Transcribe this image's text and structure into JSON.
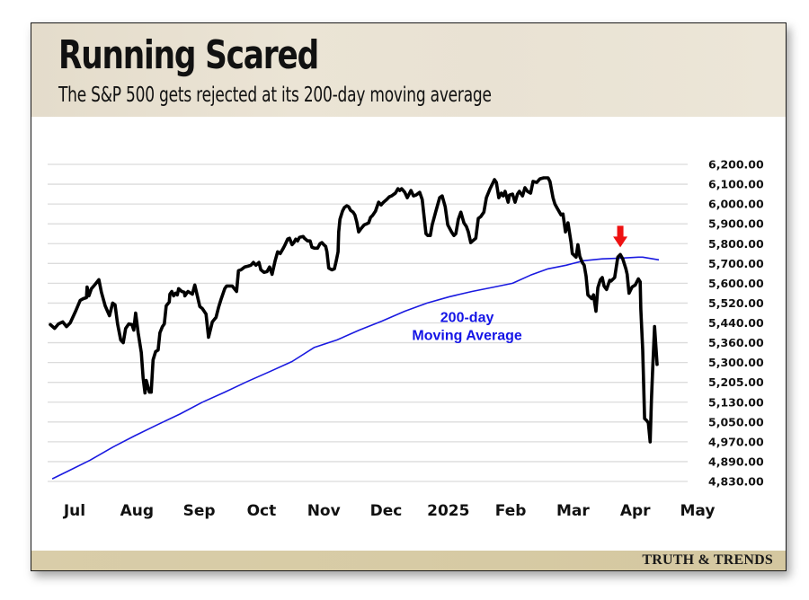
{
  "header": {
    "title": "Running Scared",
    "subtitle": "The S&P 500 gets rejected at its 200-day moving average"
  },
  "footer": {
    "brand": "TRUTH & TRENDS"
  },
  "colors": {
    "price_line": "#000000",
    "moving_average": "#1a1ae0",
    "annotation": "#1414e6",
    "arrow": "#ee1111",
    "grid": "#dcdcdc"
  },
  "chart_data": {
    "type": "line",
    "title": "Running Scared",
    "subtitle": "The S&P 500 gets rejected at its 200-day moving average",
    "xlabel": "",
    "ylabel": "",
    "x_units": "months since July 2024 (Jul = 0)",
    "x_tick_labels": [
      "Jul",
      "Aug",
      "Sep",
      "Oct",
      "Nov",
      "Dec",
      "2025",
      "Feb",
      "Mar",
      "Apr",
      "May"
    ],
    "x_tick_values": [
      0,
      1,
      2,
      3,
      4,
      5,
      6,
      7,
      8,
      9,
      10
    ],
    "y_tick_labels": [
      "6,200.00",
      "6,100.00",
      "6,000.00",
      "5,900.00",
      "5,800.00",
      "5,700.00",
      "5,600.00",
      "5,520.00",
      "5,440.00",
      "5,360.00",
      "5,300.00",
      "5,205.00",
      "5,130.00",
      "5,050.00",
      "4,970.00",
      "4,890.00",
      "4,830.00"
    ],
    "y_tick_values": [
      6200,
      6100,
      6000,
      5900,
      5800,
      5700,
      5600,
      5520,
      5440,
      5360,
      5300,
      5205,
      5130,
      5050,
      4970,
      4890,
      4830
    ],
    "grid": true,
    "y_axis_side": "right",
    "annotations": [
      {
        "text_line1": "200-day",
        "text_line2": "Moving Average",
        "x": 6.3,
        "y": 5400
      },
      {
        "type": "arrow",
        "color": "red",
        "x": 8.76,
        "y": 5745
      }
    ],
    "series": [
      {
        "name": "S&P 500",
        "points": [
          [
            -0.39,
            5433
          ],
          [
            -0.32,
            5418
          ],
          [
            -0.26,
            5436
          ],
          [
            -0.19,
            5444
          ],
          [
            -0.13,
            5425
          ],
          [
            -0.07,
            5440
          ],
          [
            0.01,
            5484
          ],
          [
            0.09,
            5531
          ],
          [
            0.14,
            5538
          ],
          [
            0.19,
            5542
          ],
          [
            0.2,
            5585
          ],
          [
            0.23,
            5549
          ],
          [
            0.27,
            5578
          ],
          [
            0.33,
            5596
          ],
          [
            0.39,
            5618
          ],
          [
            0.43,
            5564
          ],
          [
            0.49,
            5509
          ],
          [
            0.56,
            5469
          ],
          [
            0.61,
            5520
          ],
          [
            0.65,
            5513
          ],
          [
            0.69,
            5436
          ],
          [
            0.74,
            5371
          ],
          [
            0.78,
            5360
          ],
          [
            0.82,
            5418
          ],
          [
            0.87,
            5436
          ],
          [
            0.92,
            5433
          ],
          [
            0.95,
            5411
          ],
          [
            0.98,
            5480
          ],
          [
            1.02,
            5400
          ],
          [
            1.07,
            5330
          ],
          [
            1.1,
            5227
          ],
          [
            1.13,
            5165
          ],
          [
            1.15,
            5214
          ],
          [
            1.2,
            5168
          ],
          [
            1.23,
            5168
          ],
          [
            1.26,
            5308
          ],
          [
            1.3,
            5333
          ],
          [
            1.34,
            5338
          ],
          [
            1.37,
            5400
          ],
          [
            1.41,
            5425
          ],
          [
            1.44,
            5436
          ],
          [
            1.47,
            5509
          ],
          [
            1.52,
            5524
          ],
          [
            1.53,
            5556
          ],
          [
            1.56,
            5567
          ],
          [
            1.59,
            5549
          ],
          [
            1.62,
            5560
          ],
          [
            1.65,
            5553
          ],
          [
            1.67,
            5578
          ],
          [
            1.72,
            5567
          ],
          [
            1.76,
            5564
          ],
          [
            1.77,
            5549
          ],
          [
            1.82,
            5567
          ],
          [
            1.89,
            5556
          ],
          [
            1.93,
            5593
          ],
          [
            2.01,
            5506
          ],
          [
            2.05,
            5498
          ],
          [
            2.11,
            5476
          ],
          [
            2.15,
            5382
          ],
          [
            2.21,
            5444
          ],
          [
            2.27,
            5462
          ],
          [
            2.31,
            5502
          ],
          [
            2.35,
            5535
          ],
          [
            2.41,
            5578
          ],
          [
            2.44,
            5589
          ],
          [
            2.53,
            5589
          ],
          [
            2.6,
            5567
          ],
          [
            2.63,
            5664
          ],
          [
            2.67,
            5668
          ],
          [
            2.73,
            5682
          ],
          [
            2.78,
            5686
          ],
          [
            2.83,
            5691
          ],
          [
            2.87,
            5705
          ],
          [
            2.91,
            5691
          ],
          [
            2.96,
            5705
          ],
          [
            2.99,
            5668
          ],
          [
            3.04,
            5655
          ],
          [
            3.09,
            5659
          ],
          [
            3.13,
            5682
          ],
          [
            3.17,
            5645
          ],
          [
            3.22,
            5714
          ],
          [
            3.26,
            5759
          ],
          [
            3.3,
            5750
          ],
          [
            3.35,
            5777
          ],
          [
            3.38,
            5795
          ],
          [
            3.42,
            5823
          ],
          [
            3.45,
            5827
          ],
          [
            3.49,
            5795
          ],
          [
            3.52,
            5805
          ],
          [
            3.55,
            5823
          ],
          [
            3.58,
            5814
          ],
          [
            3.61,
            5832
          ],
          [
            3.67,
            5836
          ],
          [
            3.69,
            5827
          ],
          [
            3.74,
            5814
          ],
          [
            3.78,
            5814
          ],
          [
            3.81,
            5782
          ],
          [
            3.85,
            5777
          ],
          [
            3.9,
            5777
          ],
          [
            3.94,
            5800
          ],
          [
            3.97,
            5805
          ],
          [
            4.0,
            5795
          ],
          [
            4.03,
            5786
          ],
          [
            4.05,
            5759
          ],
          [
            4.08,
            5677
          ],
          [
            4.13,
            5668
          ],
          [
            4.17,
            5673
          ],
          [
            4.2,
            5714
          ],
          [
            4.23,
            5759
          ],
          [
            4.24,
            5859
          ],
          [
            4.26,
            5923
          ],
          [
            4.3,
            5964
          ],
          [
            4.33,
            5982
          ],
          [
            4.37,
            5991
          ],
          [
            4.4,
            5986
          ],
          [
            4.43,
            5968
          ],
          [
            4.47,
            5959
          ],
          [
            4.5,
            5945
          ],
          [
            4.53,
            5909
          ],
          [
            4.56,
            5859
          ],
          [
            4.6,
            5877
          ],
          [
            4.65,
            5895
          ],
          [
            4.69,
            5900
          ],
          [
            4.72,
            5905
          ],
          [
            4.75,
            5932
          ],
          [
            4.78,
            5941
          ],
          [
            4.83,
            5964
          ],
          [
            4.88,
            6009
          ],
          [
            4.92,
            5995
          ],
          [
            4.96,
            6009
          ],
          [
            5.01,
            6023
          ],
          [
            5.05,
            6036
          ],
          [
            5.09,
            6041
          ],
          [
            5.15,
            6055
          ],
          [
            5.19,
            6077
          ],
          [
            5.22,
            6068
          ],
          [
            5.25,
            6077
          ],
          [
            5.3,
            6059
          ],
          [
            5.34,
            6032
          ],
          [
            5.4,
            6068
          ],
          [
            5.44,
            6041
          ],
          [
            5.48,
            6045
          ],
          [
            5.54,
            6059
          ],
          [
            5.58,
            6023
          ],
          [
            5.64,
            5850
          ],
          [
            5.67,
            5841
          ],
          [
            5.71,
            5841
          ],
          [
            5.74,
            5895
          ],
          [
            5.8,
            5964
          ],
          [
            5.86,
            6032
          ],
          [
            5.9,
            6041
          ],
          [
            5.95,
            5986
          ],
          [
            5.99,
            5895
          ],
          [
            6.05,
            5859
          ],
          [
            6.09,
            5841
          ],
          [
            6.12,
            5850
          ],
          [
            6.16,
            5923
          ],
          [
            6.2,
            5959
          ],
          [
            6.25,
            5905
          ],
          [
            6.29,
            5886
          ],
          [
            6.32,
            5859
          ],
          [
            6.36,
            5805
          ],
          [
            6.39,
            5814
          ],
          [
            6.44,
            5827
          ],
          [
            6.48,
            5927
          ],
          [
            6.52,
            5936
          ],
          [
            6.57,
            5959
          ],
          [
            6.61,
            6032
          ],
          [
            6.67,
            6077
          ],
          [
            6.74,
            6123
          ],
          [
            6.77,
            6109
          ],
          [
            6.81,
            6032
          ],
          [
            6.85,
            6055
          ],
          [
            6.88,
            6041
          ],
          [
            6.91,
            6064
          ],
          [
            6.96,
            6009
          ],
          [
            6.98,
            6045
          ],
          [
            7.03,
            6050
          ],
          [
            7.07,
            6009
          ],
          [
            7.11,
            6050
          ],
          [
            7.14,
            6064
          ],
          [
            7.19,
            6041
          ],
          [
            7.23,
            6082
          ],
          [
            7.27,
            6064
          ],
          [
            7.32,
            6055
          ],
          [
            7.36,
            6114
          ],
          [
            7.42,
            6109
          ],
          [
            7.47,
            6127
          ],
          [
            7.53,
            6132
          ],
          [
            7.6,
            6132
          ],
          [
            7.63,
            6114
          ],
          [
            7.68,
            6032
          ],
          [
            7.71,
            6000
          ],
          [
            7.75,
            5977
          ],
          [
            7.81,
            5945
          ],
          [
            7.84,
            5950
          ],
          [
            7.88,
            5859
          ],
          [
            7.92,
            5905
          ],
          [
            7.97,
            5805
          ],
          [
            7.99,
            5750
          ],
          [
            8.05,
            5732
          ],
          [
            8.08,
            5795
          ],
          [
            8.11,
            5736
          ],
          [
            8.15,
            5705
          ],
          [
            8.18,
            5691
          ],
          [
            8.21,
            5636
          ],
          [
            8.24,
            5553
          ],
          [
            8.3,
            5538
          ],
          [
            8.33,
            5553
          ],
          [
            8.37,
            5487
          ],
          [
            8.4,
            5582
          ],
          [
            8.44,
            5618
          ],
          [
            8.47,
            5629
          ],
          [
            8.5,
            5589
          ],
          [
            8.54,
            5575
          ],
          [
            8.59,
            5615
          ],
          [
            8.61,
            5611
          ],
          [
            8.67,
            5629
          ],
          [
            8.72,
            5732
          ],
          [
            8.76,
            5745
          ],
          [
            8.8,
            5723
          ],
          [
            8.85,
            5673
          ],
          [
            8.87,
            5645
          ],
          [
            8.9,
            5560
          ],
          [
            8.95,
            5585
          ],
          [
            9.0,
            5593
          ],
          [
            9.05,
            5622
          ],
          [
            9.08,
            5607
          ],
          [
            9.09,
            5495
          ],
          [
            9.12,
            5338
          ],
          [
            9.15,
            5064
          ],
          [
            9.18,
            5057
          ],
          [
            9.21,
            5046
          ],
          [
            9.24,
            4970
          ],
          [
            9.26,
            5137
          ],
          [
            9.28,
            5269
          ],
          [
            9.31,
            5425
          ],
          [
            9.35,
            5291
          ]
        ]
      },
      {
        "name": "200-day Moving Average",
        "points": [
          [
            -0.36,
            4838
          ],
          [
            -0.12,
            4860
          ],
          [
            0.25,
            4896
          ],
          [
            0.61,
            4948
          ],
          [
            0.97,
            4995
          ],
          [
            1.33,
            5039
          ],
          [
            1.69,
            5082
          ],
          [
            2.05,
            5130
          ],
          [
            2.41,
            5168
          ],
          [
            2.77,
            5209
          ],
          [
            3.13,
            5256
          ],
          [
            3.49,
            5303
          ],
          [
            3.85,
            5346
          ],
          [
            4.21,
            5371
          ],
          [
            4.57,
            5411
          ],
          [
            4.93,
            5447
          ],
          [
            5.3,
            5487
          ],
          [
            5.66,
            5520
          ],
          [
            6.02,
            5546
          ],
          [
            6.38,
            5567
          ],
          [
            6.74,
            5585
          ],
          [
            7.03,
            5600
          ],
          [
            7.32,
            5641
          ],
          [
            7.6,
            5673
          ],
          [
            7.89,
            5691
          ],
          [
            8.18,
            5714
          ],
          [
            8.47,
            5723
          ],
          [
            8.76,
            5727
          ],
          [
            9.05,
            5732
          ],
          [
            9.12,
            5732
          ],
          [
            9.38,
            5718
          ]
        ]
      }
    ]
  }
}
